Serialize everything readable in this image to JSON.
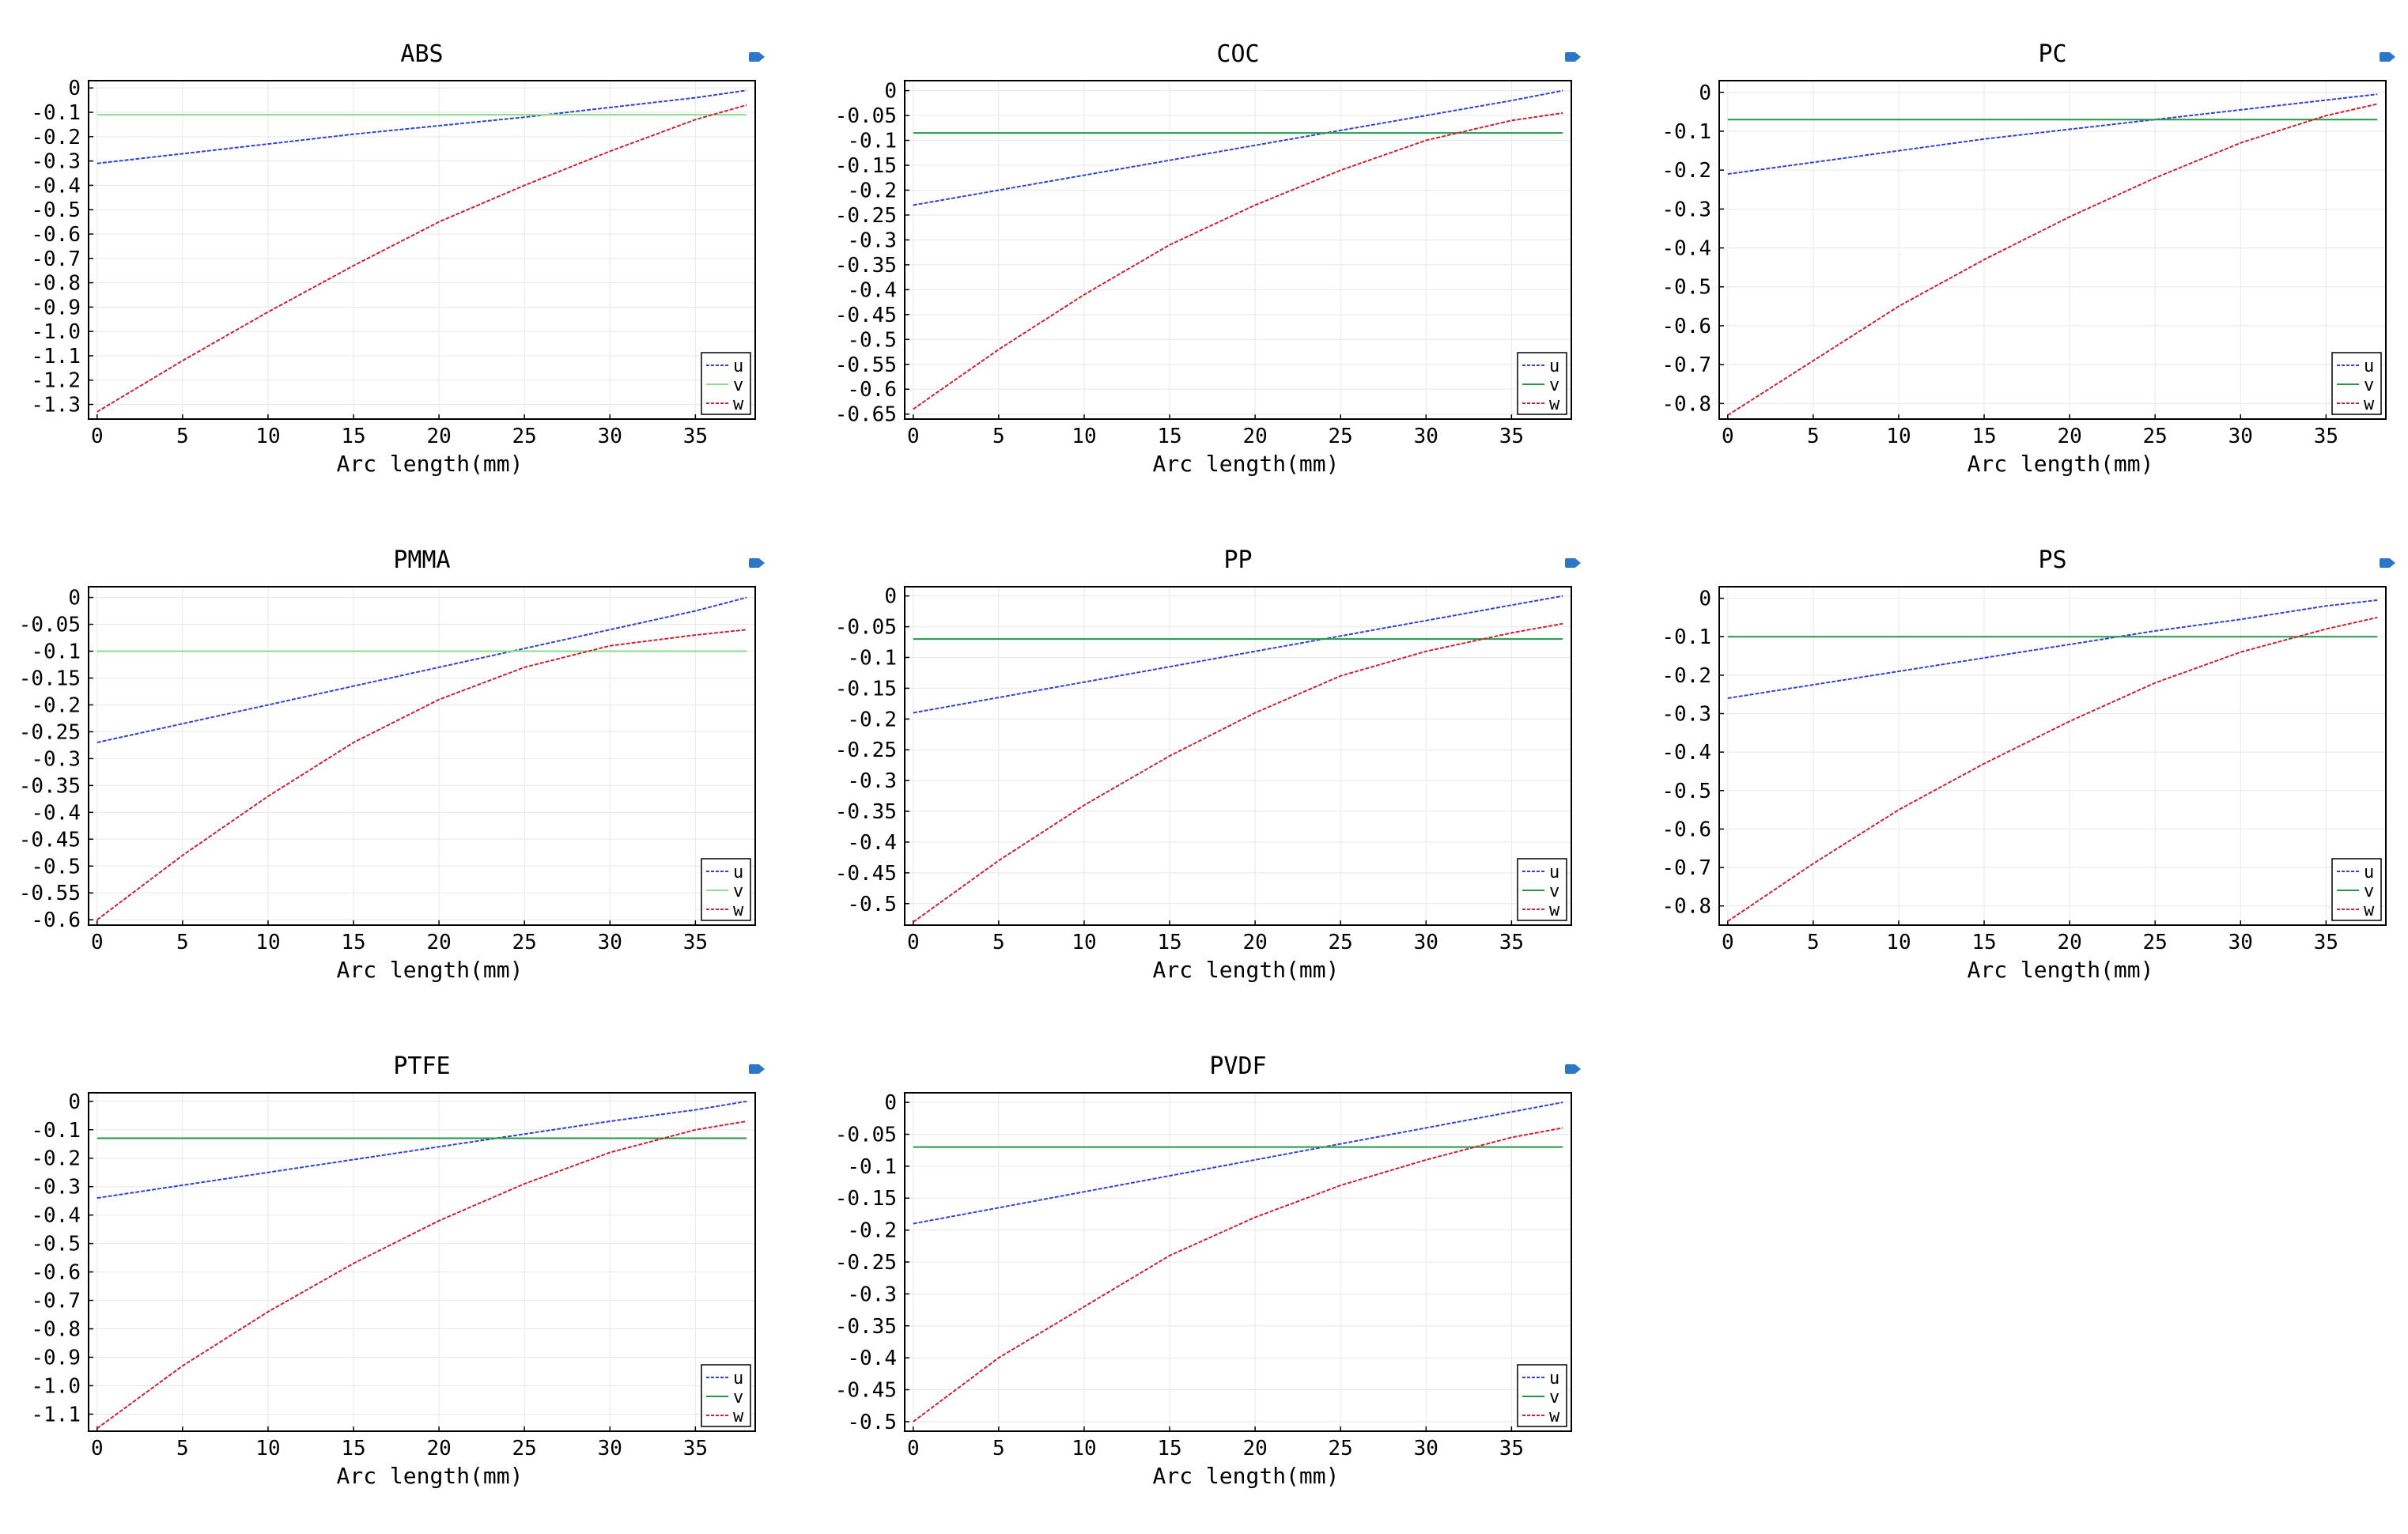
{
  "chart_data": [
    {
      "type": "line",
      "title": "ABS",
      "xlabel": "Arc length(mm)",
      "ylabel": "",
      "xlim": [
        -0.5,
        38.5
      ],
      "ylim": [
        -1.36,
        0.03
      ],
      "xticks": [
        0,
        5,
        10,
        15,
        20,
        25,
        30,
        35
      ],
      "xtick_labels": [
        "0",
        "5",
        "10",
        "15",
        "20",
        "25",
        "30",
        "35"
      ],
      "yticks": [
        0,
        -0.1,
        -0.2,
        -0.3,
        -0.4,
        -0.5,
        -0.6,
        -0.7,
        -0.8,
        -0.9,
        -1.0,
        -1.1,
        -1.2,
        -1.3
      ],
      "ytick_labels": [
        "0",
        "-0.1",
        "-0.2",
        "-0.3",
        "-0.4",
        "-0.5",
        "-0.6",
        "-0.7",
        "-0.8",
        "-0.9",
        "-1.0",
        "-1.1",
        "-1.2",
        "-1.3"
      ],
      "x": [
        0,
        5,
        10,
        15,
        20,
        25,
        30,
        35,
        38
      ],
      "series": [
        {
          "name": "u",
          "color": "#3344cc",
          "values": [
            -0.31,
            -0.27,
            -0.23,
            -0.19,
            -0.155,
            -0.12,
            -0.08,
            -0.04,
            -0.01
          ]
        },
        {
          "name": "v",
          "color": "#88dd88",
          "values": [
            -0.11,
            -0.11,
            -0.11,
            -0.11,
            -0.11,
            -0.11,
            -0.11,
            -0.11,
            -0.11
          ]
        },
        {
          "name": "w",
          "color": "#cc2233",
          "values": [
            -1.33,
            -1.12,
            -0.92,
            -0.73,
            -0.55,
            -0.4,
            -0.26,
            -0.13,
            -0.07
          ]
        }
      ]
    },
    {
      "type": "line",
      "title": "COC",
      "xlabel": "Arc length(mm)",
      "ylabel": "",
      "xlim": [
        -0.5,
        38.5
      ],
      "ylim": [
        -0.66,
        0.02
      ],
      "xticks": [
        0,
        5,
        10,
        15,
        20,
        25,
        30,
        35
      ],
      "xtick_labels": [
        "0",
        "5",
        "10",
        "15",
        "20",
        "25",
        "30",
        "35"
      ],
      "yticks": [
        0,
        -0.05,
        -0.1,
        -0.15,
        -0.2,
        -0.25,
        -0.3,
        -0.35,
        -0.4,
        -0.45,
        -0.5,
        -0.55,
        -0.6,
        -0.65
      ],
      "ytick_labels": [
        "0",
        "-0.05",
        "-0.1",
        "-0.15",
        "-0.2",
        "-0.25",
        "-0.3",
        "-0.35",
        "-0.4",
        "-0.45",
        "-0.5",
        "-0.55",
        "-0.6",
        "-0.65"
      ],
      "x": [
        0,
        5,
        10,
        15,
        20,
        25,
        30,
        35,
        38
      ],
      "series": [
        {
          "name": "u",
          "color": "#3344cc",
          "values": [
            -0.23,
            -0.2,
            -0.17,
            -0.14,
            -0.11,
            -0.08,
            -0.05,
            -0.02,
            0
          ]
        },
        {
          "name": "v",
          "color": "#229944",
          "values": [
            -0.085,
            -0.085,
            -0.085,
            -0.085,
            -0.085,
            -0.085,
            -0.085,
            -0.085,
            -0.085
          ]
        },
        {
          "name": "w",
          "color": "#cc2233",
          "values": [
            -0.64,
            -0.52,
            -0.41,
            -0.31,
            -0.23,
            -0.16,
            -0.1,
            -0.06,
            -0.045
          ]
        }
      ]
    },
    {
      "type": "line",
      "title": "PC",
      "xlabel": "Arc length(mm)",
      "ylabel": "",
      "xlim": [
        -0.5,
        38.5
      ],
      "ylim": [
        -0.84,
        0.03
      ],
      "xticks": [
        0,
        5,
        10,
        15,
        20,
        25,
        30,
        35
      ],
      "xtick_labels": [
        "0",
        "5",
        "10",
        "15",
        "20",
        "25",
        "30",
        "35"
      ],
      "yticks": [
        0,
        -0.1,
        -0.2,
        -0.3,
        -0.4,
        -0.5,
        -0.6,
        -0.7,
        -0.8
      ],
      "ytick_labels": [
        "0",
        "-0.1",
        "-0.2",
        "-0.3",
        "-0.4",
        "-0.5",
        "-0.6",
        "-0.7",
        "-0.8"
      ],
      "x": [
        0,
        5,
        10,
        15,
        20,
        25,
        30,
        35,
        38
      ],
      "series": [
        {
          "name": "u",
          "color": "#3344cc",
          "values": [
            -0.21,
            -0.18,
            -0.15,
            -0.12,
            -0.095,
            -0.07,
            -0.045,
            -0.02,
            -0.005
          ]
        },
        {
          "name": "v",
          "color": "#229944",
          "values": [
            -0.07,
            -0.07,
            -0.07,
            -0.07,
            -0.07,
            -0.07,
            -0.07,
            -0.07,
            -0.07
          ]
        },
        {
          "name": "w",
          "color": "#cc2233",
          "values": [
            -0.83,
            -0.69,
            -0.55,
            -0.43,
            -0.32,
            -0.22,
            -0.13,
            -0.06,
            -0.03
          ]
        }
      ]
    },
    {
      "type": "line",
      "title": "PMMA",
      "xlabel": "Arc length(mm)",
      "ylabel": "",
      "xlim": [
        -0.5,
        38.5
      ],
      "ylim": [
        -0.61,
        0.02
      ],
      "xticks": [
        0,
        5,
        10,
        15,
        20,
        25,
        30,
        35
      ],
      "xtick_labels": [
        "0",
        "5",
        "10",
        "15",
        "20",
        "25",
        "30",
        "35"
      ],
      "yticks": [
        0,
        -0.05,
        -0.1,
        -0.15,
        -0.2,
        -0.25,
        -0.3,
        -0.35,
        -0.4,
        -0.45,
        -0.5,
        -0.55,
        -0.6
      ],
      "ytick_labels": [
        "0",
        "-0.05",
        "-0.1",
        "-0.15",
        "-0.2",
        "-0.25",
        "-0.3",
        "-0.35",
        "-0.4",
        "-0.45",
        "-0.5",
        "-0.55",
        "-0.6"
      ],
      "x": [
        0,
        5,
        10,
        15,
        20,
        25,
        30,
        35,
        38
      ],
      "series": [
        {
          "name": "u",
          "color": "#3344cc",
          "values": [
            -0.27,
            -0.235,
            -0.2,
            -0.165,
            -0.13,
            -0.095,
            -0.06,
            -0.025,
            0
          ]
        },
        {
          "name": "v",
          "color": "#88dd88",
          "values": [
            -0.1,
            -0.1,
            -0.1,
            -0.1,
            -0.1,
            -0.1,
            -0.1,
            -0.1,
            -0.1
          ]
        },
        {
          "name": "w",
          "color": "#cc2233",
          "values": [
            -0.6,
            -0.48,
            -0.37,
            -0.27,
            -0.19,
            -0.13,
            -0.09,
            -0.07,
            -0.06
          ]
        }
      ]
    },
    {
      "type": "line",
      "title": "PP",
      "xlabel": "Arc length(mm)",
      "ylabel": "",
      "xlim": [
        -0.5,
        38.5
      ],
      "ylim": [
        -0.535,
        0.015
      ],
      "xticks": [
        0,
        5,
        10,
        15,
        20,
        25,
        30,
        35
      ],
      "xtick_labels": [
        "0",
        "5",
        "10",
        "15",
        "20",
        "25",
        "30",
        "35"
      ],
      "yticks": [
        0,
        -0.05,
        -0.1,
        -0.15,
        -0.2,
        -0.25,
        -0.3,
        -0.35,
        -0.4,
        -0.45,
        -0.5
      ],
      "ytick_labels": [
        "0",
        "-0.05",
        "-0.1",
        "-0.15",
        "-0.2",
        "-0.25",
        "-0.3",
        "-0.35",
        "-0.4",
        "-0.45",
        "-0.5"
      ],
      "x": [
        0,
        5,
        10,
        15,
        20,
        25,
        30,
        35,
        38
      ],
      "series": [
        {
          "name": "u",
          "color": "#3344cc",
          "values": [
            -0.19,
            -0.165,
            -0.14,
            -0.115,
            -0.09,
            -0.065,
            -0.04,
            -0.015,
            0
          ]
        },
        {
          "name": "v",
          "color": "#229944",
          "values": [
            -0.07,
            -0.07,
            -0.07,
            -0.07,
            -0.07,
            -0.07,
            -0.07,
            -0.07,
            -0.07
          ]
        },
        {
          "name": "w",
          "color": "#cc2233",
          "values": [
            -0.53,
            -0.43,
            -0.34,
            -0.26,
            -0.19,
            -0.13,
            -0.09,
            -0.06,
            -0.045
          ]
        }
      ]
    },
    {
      "type": "line",
      "title": "PS",
      "xlabel": "Arc length(mm)",
      "ylabel": "",
      "xlim": [
        -0.5,
        38.5
      ],
      "ylim": [
        -0.85,
        0.03
      ],
      "xticks": [
        0,
        5,
        10,
        15,
        20,
        25,
        30,
        35
      ],
      "xtick_labels": [
        "0",
        "5",
        "10",
        "15",
        "20",
        "25",
        "30",
        "35"
      ],
      "yticks": [
        0,
        -0.1,
        -0.2,
        -0.3,
        -0.4,
        -0.5,
        -0.6,
        -0.7,
        -0.8
      ],
      "ytick_labels": [
        "0",
        "-0.1",
        "-0.2",
        "-0.3",
        "-0.4",
        "-0.5",
        "-0.6",
        "-0.7",
        "-0.8"
      ],
      "x": [
        0,
        5,
        10,
        15,
        20,
        25,
        30,
        35,
        38
      ],
      "series": [
        {
          "name": "u",
          "color": "#3344cc",
          "values": [
            -0.26,
            -0.225,
            -0.19,
            -0.155,
            -0.12,
            -0.085,
            -0.055,
            -0.02,
            -0.005
          ]
        },
        {
          "name": "v",
          "color": "#229944",
          "values": [
            -0.1,
            -0.1,
            -0.1,
            -0.1,
            -0.1,
            -0.1,
            -0.1,
            -0.1,
            -0.1
          ]
        },
        {
          "name": "w",
          "color": "#cc2233",
          "values": [
            -0.84,
            -0.69,
            -0.55,
            -0.43,
            -0.32,
            -0.22,
            -0.14,
            -0.08,
            -0.05
          ]
        }
      ]
    },
    {
      "type": "line",
      "title": "PTFE",
      "xlabel": "Arc length(mm)",
      "ylabel": "",
      "xlim": [
        -0.5,
        38.5
      ],
      "ylim": [
        -1.16,
        0.03
      ],
      "xticks": [
        0,
        5,
        10,
        15,
        20,
        25,
        30,
        35
      ],
      "xtick_labels": [
        "0",
        "5",
        "10",
        "15",
        "20",
        "25",
        "30",
        "35"
      ],
      "yticks": [
        0,
        -0.1,
        -0.2,
        -0.3,
        -0.4,
        -0.5,
        -0.6,
        -0.7,
        -0.8,
        -0.9,
        -1.0,
        -1.1
      ],
      "ytick_labels": [
        "0",
        "-0.1",
        "-0.2",
        "-0.3",
        "-0.4",
        "-0.5",
        "-0.6",
        "-0.7",
        "-0.8",
        "-0.9",
        "-1.0",
        "-1.1"
      ],
      "x": [
        0,
        5,
        10,
        15,
        20,
        25,
        30,
        35,
        38
      ],
      "series": [
        {
          "name": "u",
          "color": "#3344cc",
          "values": [
            -0.34,
            -0.295,
            -0.25,
            -0.205,
            -0.16,
            -0.115,
            -0.07,
            -0.03,
            0
          ]
        },
        {
          "name": "v",
          "color": "#229944",
          "values": [
            -0.13,
            -0.13,
            -0.13,
            -0.13,
            -0.13,
            -0.13,
            -0.13,
            -0.13,
            -0.13
          ]
        },
        {
          "name": "w",
          "color": "#cc2233",
          "values": [
            -1.15,
            -0.93,
            -0.74,
            -0.57,
            -0.42,
            -0.29,
            -0.18,
            -0.1,
            -0.07
          ]
        }
      ]
    },
    {
      "type": "line",
      "title": "PVDF",
      "xlabel": "Arc length(mm)",
      "ylabel": "",
      "xlim": [
        -0.5,
        38.5
      ],
      "ylim": [
        -0.515,
        0.015
      ],
      "xticks": [
        0,
        5,
        10,
        15,
        20,
        25,
        30,
        35
      ],
      "xtick_labels": [
        "0",
        "5",
        "10",
        "15",
        "20",
        "25",
        "30",
        "35"
      ],
      "yticks": [
        0,
        -0.05,
        -0.1,
        -0.15,
        -0.2,
        -0.25,
        -0.3,
        -0.35,
        -0.4,
        -0.45,
        -0.5
      ],
      "ytick_labels": [
        "0",
        "-0.05",
        "-0.1",
        "-0.15",
        "-0.2",
        "-0.25",
        "-0.3",
        "-0.35",
        "-0.4",
        "-0.45",
        "-0.5"
      ],
      "x": [
        0,
        5,
        10,
        15,
        20,
        25,
        30,
        35,
        38
      ],
      "series": [
        {
          "name": "u",
          "color": "#3344cc",
          "values": [
            -0.19,
            -0.165,
            -0.14,
            -0.115,
            -0.09,
            -0.065,
            -0.04,
            -0.015,
            0
          ]
        },
        {
          "name": "v",
          "color": "#229944",
          "values": [
            -0.07,
            -0.07,
            -0.07,
            -0.07,
            -0.07,
            -0.07,
            -0.07,
            -0.07,
            -0.07
          ]
        },
        {
          "name": "w",
          "color": "#cc2233",
          "values": [
            -0.5,
            -0.4,
            -0.32,
            -0.24,
            -0.18,
            -0.13,
            -0.09,
            -0.055,
            -0.04
          ]
        }
      ]
    }
  ]
}
